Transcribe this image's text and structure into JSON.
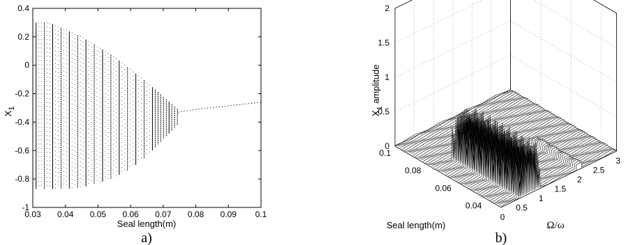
{
  "chart_data": [
    {
      "type": "scatter",
      "caption": "a)",
      "xlabel": "Seal length(m)",
      "ylabel": "X",
      "ylabel_subscript": "1",
      "xlim": [
        0.03,
        0.1
      ],
      "ylim": [
        -1,
        0.4
      ],
      "xticks": [
        "0.03",
        "0.04",
        "0.05",
        "0.06",
        "0.07",
        "0.08",
        "0.09",
        "0.1"
      ],
      "yticks": [
        "0.4",
        "0.2",
        "0",
        "-0.2",
        "-0.4",
        "-0.6",
        "-0.8",
        "-1"
      ],
      "grid": false,
      "bifurcation_envelope": {
        "x": [
          0.031,
          0.035,
          0.04,
          0.045,
          0.05,
          0.055,
          0.06,
          0.065,
          0.07,
          0.0745
        ],
        "upper": [
          0.3,
          0.3,
          0.25,
          0.2,
          0.13,
          0.06,
          -0.03,
          -0.12,
          -0.22,
          -0.31
        ],
        "lower": [
          -0.87,
          -0.87,
          -0.87,
          -0.86,
          -0.83,
          -0.79,
          -0.73,
          -0.64,
          -0.52,
          -0.42
        ]
      },
      "period1_branch": {
        "x": [
          0.0745,
          0.08,
          0.09,
          0.1
        ],
        "y": [
          -0.33,
          -0.31,
          -0.285,
          -0.26
        ]
      }
    },
    {
      "type": "area",
      "caption": "b)",
      "xlabel": "Ω/ω",
      "ylabel": "X",
      "ylabel_subscript": "1",
      "ylabel_suffix": " amplitude",
      "depth_label": "Seal length(m)",
      "xlim": [
        0,
        3
      ],
      "depth_lim": [
        0.03,
        0.1
      ],
      "zlim": [
        0,
        2
      ],
      "xticks": [
        "0",
        "0.5",
        "1",
        "1.5",
        "2",
        "2.5",
        "3"
      ],
      "depth_ticks": [
        "0.1",
        "0.08",
        "0.06",
        "0.04"
      ],
      "zticks": [
        "0",
        "0.5",
        "1",
        "1.5",
        "2"
      ],
      "grid": true,
      "waterfall": {
        "seal_length_start": 0.03,
        "seal_length_end": 0.1,
        "peak_ratio_band": [
          0.45,
          1.0
        ],
        "max_amplitude": 0.65
      }
    }
  ]
}
